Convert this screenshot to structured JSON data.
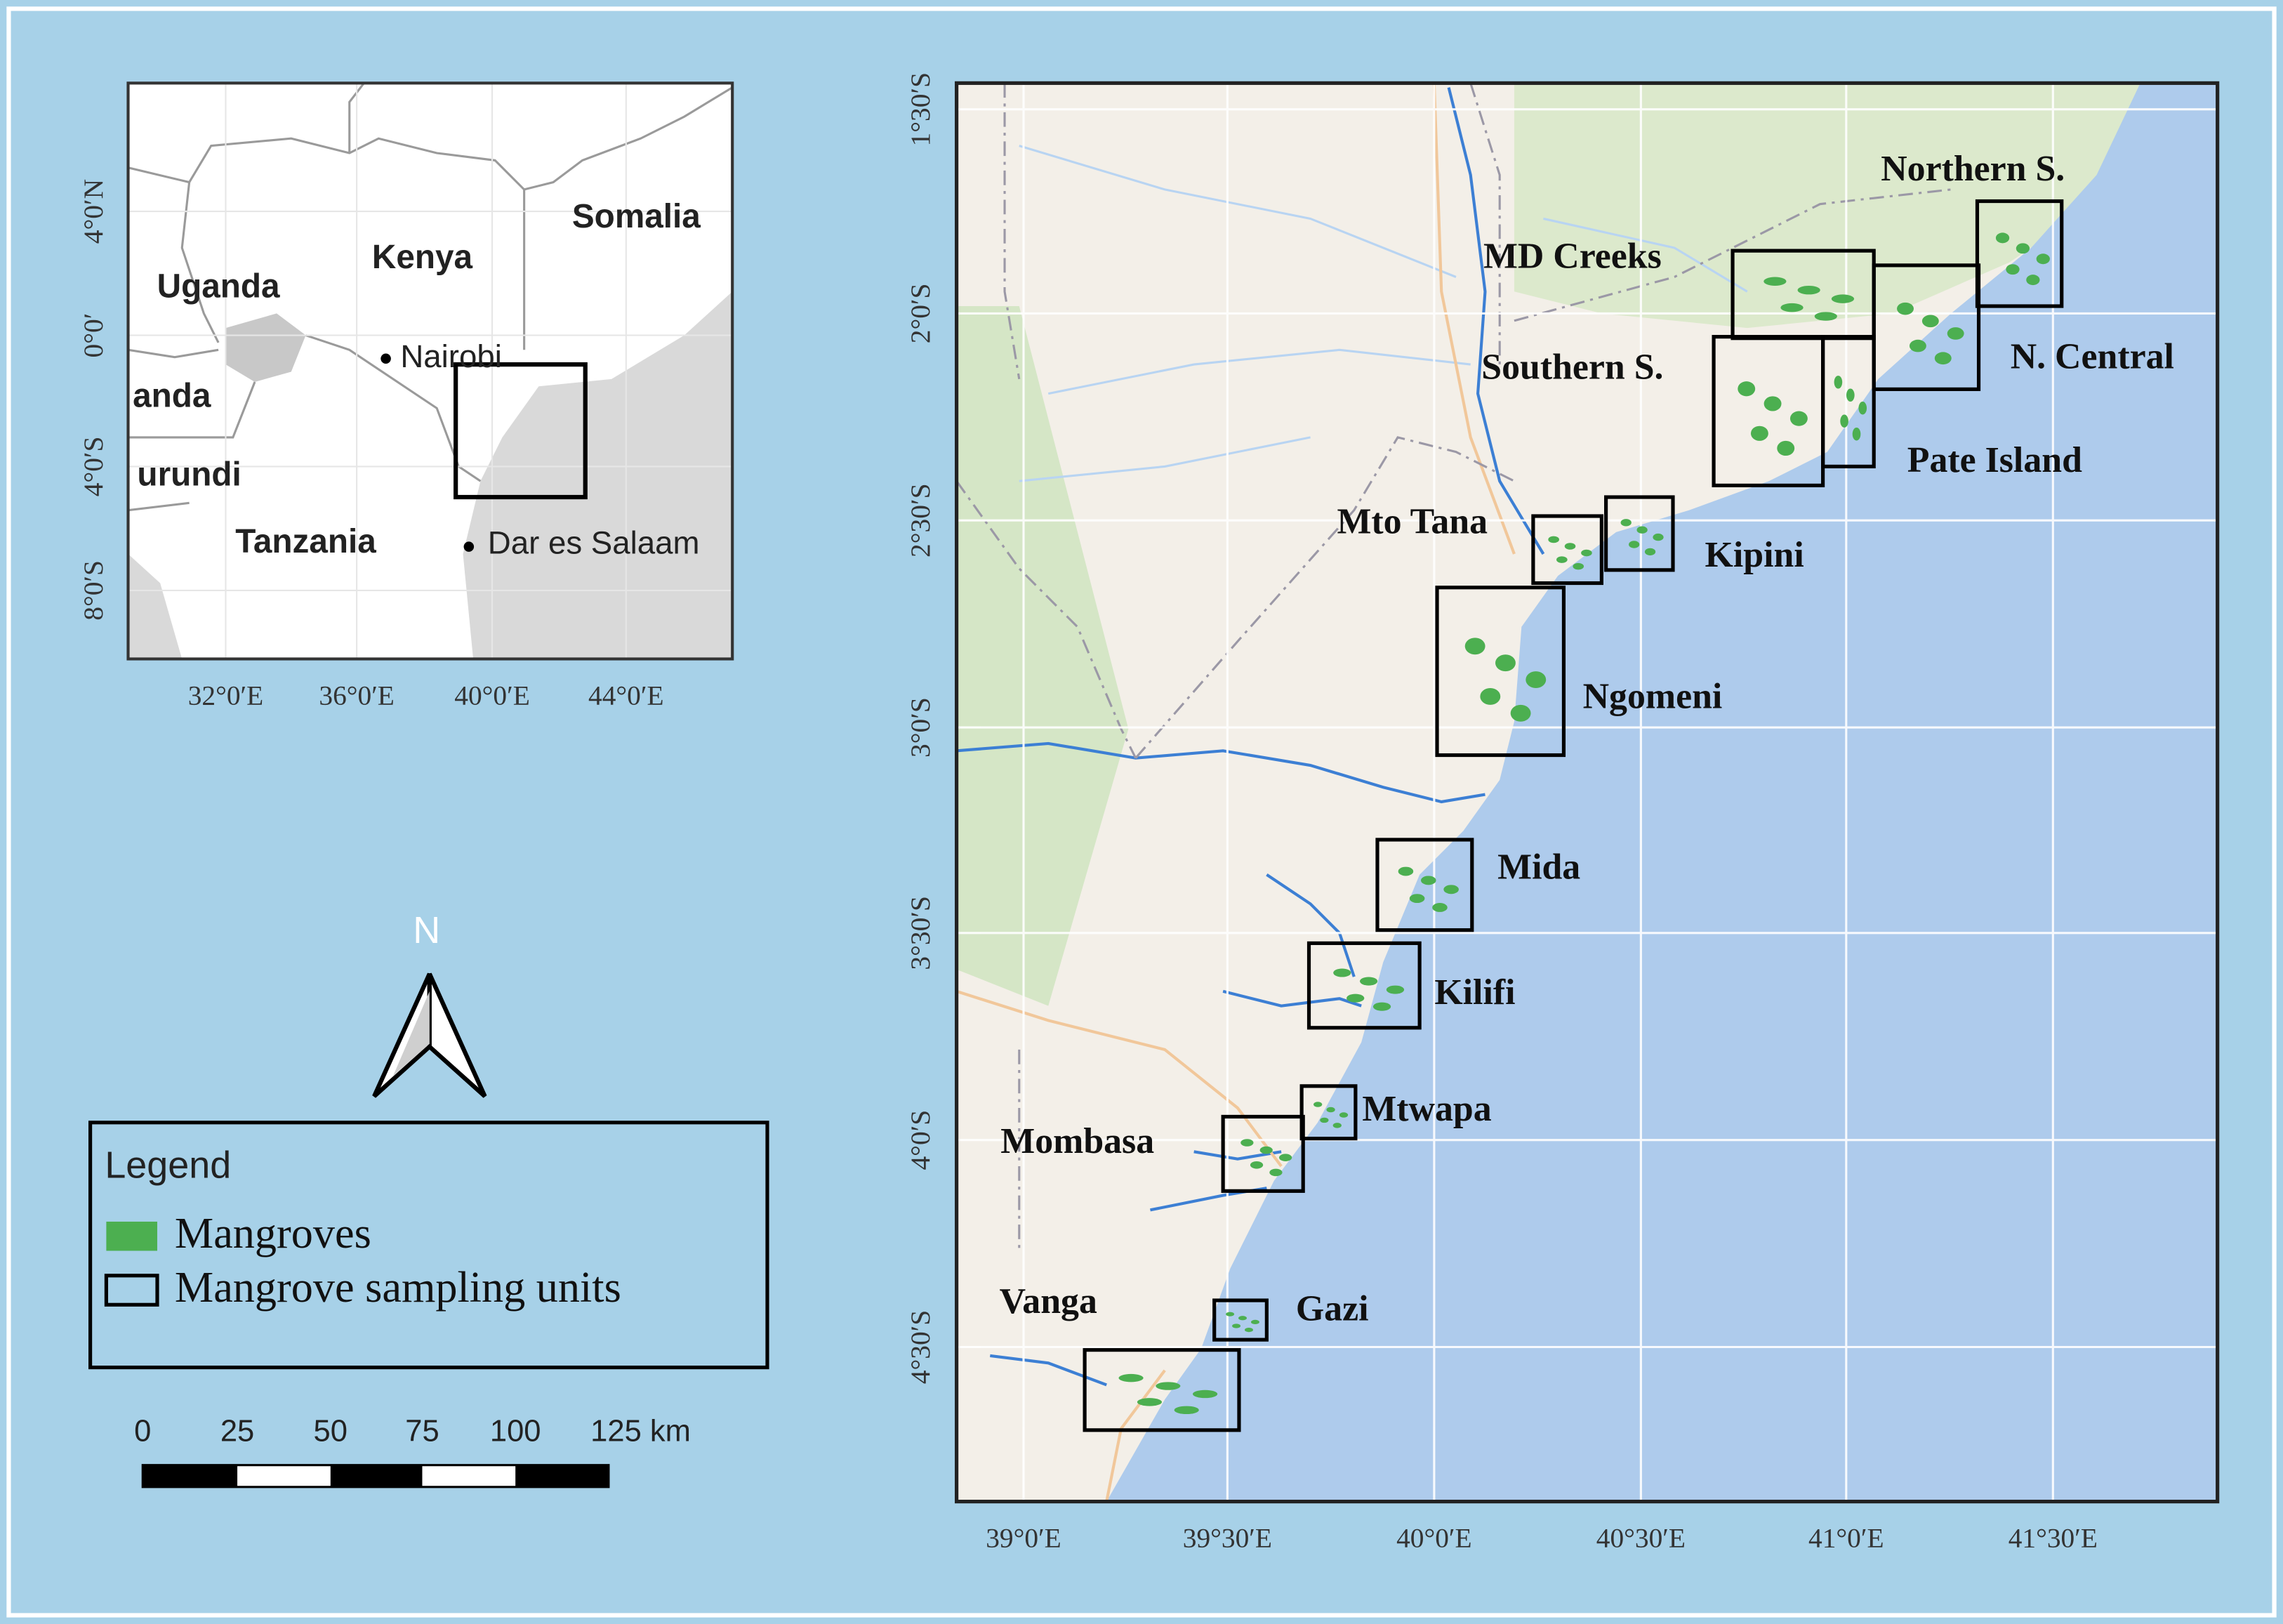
{
  "inset_map": {
    "countries": [
      "Uganda",
      "Kenya",
      "Somalia",
      "anda",
      "urundi",
      "Tanzania"
    ],
    "cities": [
      "Nairobi",
      "Dar es Salaam"
    ],
    "lat_ticks": [
      "4°0′N",
      "0°0′",
      "4°0′S",
      "8°0′S"
    ],
    "lon_ticks": [
      "32°0′E",
      "36°0′E",
      "40°0′E",
      "44°0′E"
    ]
  },
  "north_arrow": "N",
  "legend": {
    "title": "Legend",
    "items": [
      "Mangroves",
      "Mangrove sampling units"
    ]
  },
  "scale_bar": {
    "labels": [
      "0",
      "25",
      "50",
      "75",
      "100",
      "125 km"
    ]
  },
  "main_map": {
    "lat_ticks": [
      "1°30′S",
      "2°0′S",
      "2°30′S",
      "3°0′S",
      "3°30′S",
      "4°0′S",
      "4°30′S"
    ],
    "lon_ticks": [
      "39°0′E",
      "39°30′E",
      "40°0′E",
      "40°30′E",
      "41°0′E",
      "41°30′E"
    ],
    "sampling_units": [
      "Northern S.",
      "MD Creeks",
      "N. Central",
      "Southern S.",
      "Pate Island",
      "Mto Tana",
      "Kipini",
      "Ngomeni",
      "Mida",
      "Kilifi",
      "Mtwapa",
      "Mombasa",
      "Gazi",
      "Vanga"
    ]
  }
}
